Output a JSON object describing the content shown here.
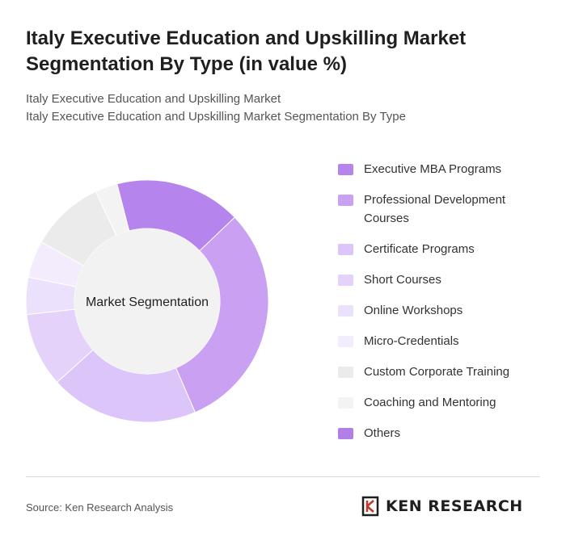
{
  "title": "Italy Executive Education and Upskilling Market Segmentation By Type (in value %)",
  "subtitle": {
    "line1": "Italy Executive Education and Upskilling Market",
    "line2": "Italy Executive Education and Upskilling Market Segmentation By Type"
  },
  "chart_data": {
    "type": "pie",
    "center_label": "Market Segmentation",
    "categories": [
      "Executive MBA Programs",
      "Professional Development Courses",
      "Certificate Programs",
      "Short Courses",
      "Online Workshops",
      "Micro-Credentials",
      "Custom Corporate Training",
      "Coaching and Mentoring",
      "Others"
    ],
    "values": [
      17,
      31,
      20,
      10,
      5,
      5,
      10,
      3,
      0
    ],
    "colors": [
      "#b584ec",
      "#c9a0f2",
      "#dcc5f9",
      "#e4d2fa",
      "#ece1fc",
      "#f2ecfd",
      "#ebebeb",
      "#f3f3f3",
      "#b07fe8"
    ],
    "legend_position": "right"
  },
  "source": "Source: Ken Research Analysis",
  "logo_text": "KEN RESEARCH"
}
